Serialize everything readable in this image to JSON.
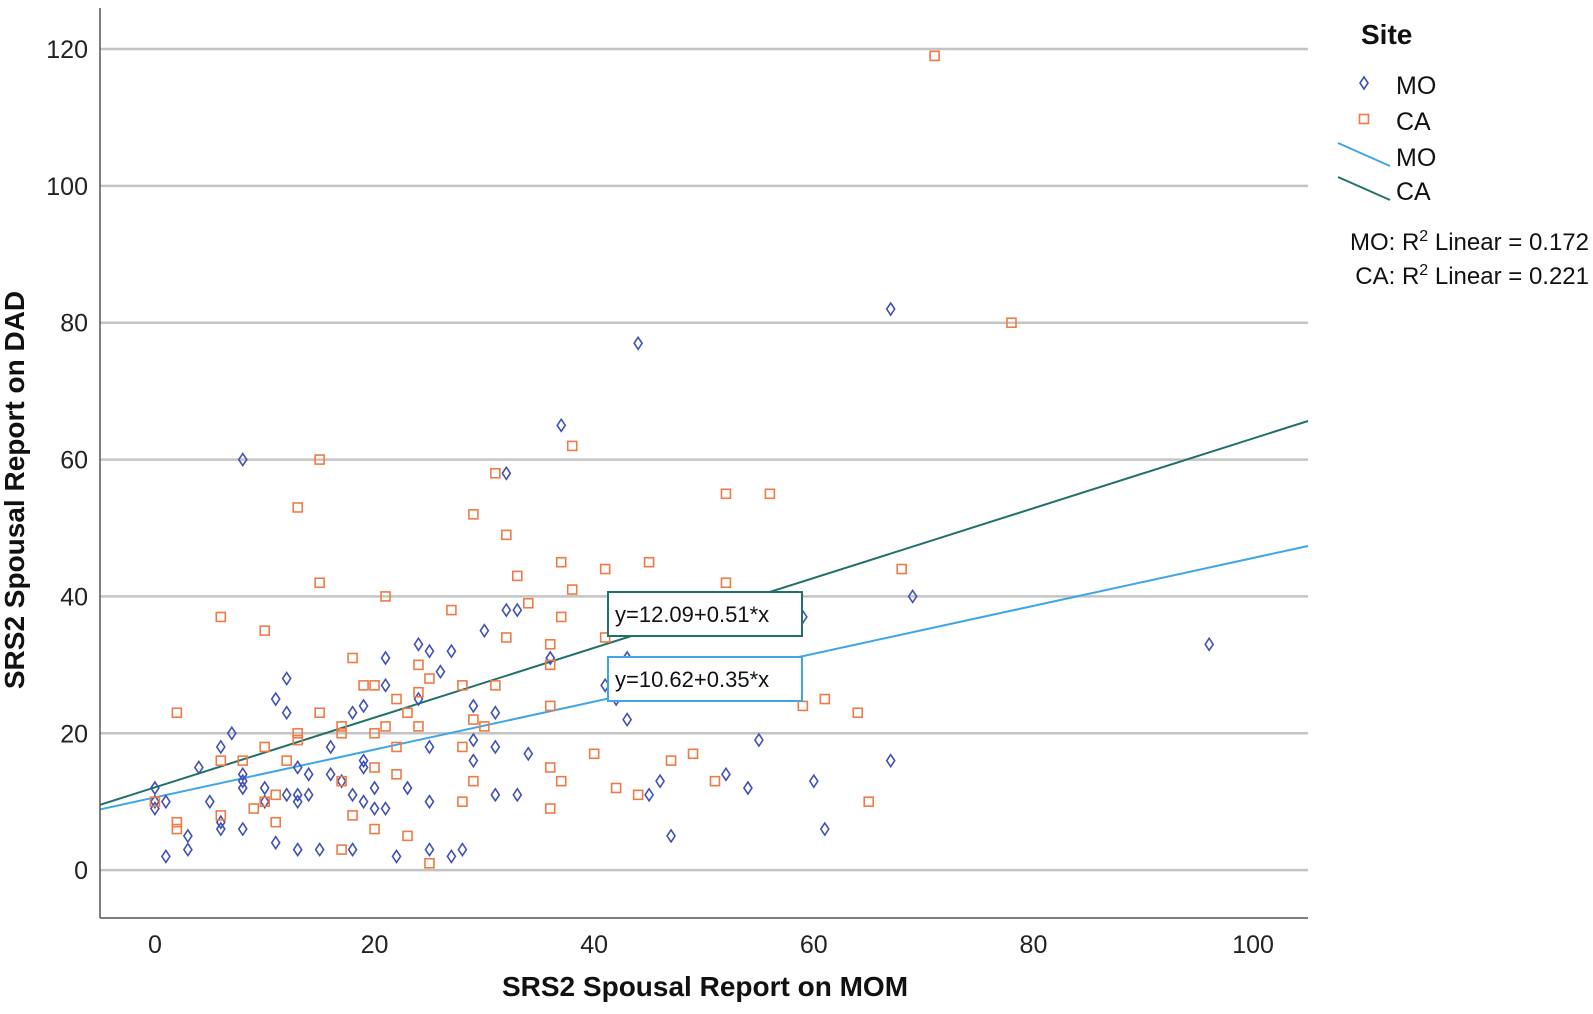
{
  "chart_data": {
    "type": "scatter",
    "xlabel": "SRS2 Spousal Report on MOM",
    "ylabel": "SRS2 Spousal Report on DAD",
    "xlim": [
      -5,
      105
    ],
    "ylim": [
      -7,
      126
    ],
    "x_ticks": [
      0,
      20,
      40,
      60,
      80,
      100
    ],
    "y_ticks": [
      0,
      20,
      40,
      60,
      80,
      100,
      120
    ],
    "grid": "horizontal",
    "legend": {
      "title": "Site",
      "placement": "right",
      "entries": [
        {
          "label": "MO",
          "kind": "marker",
          "series": "MO"
        },
        {
          "label": "CA",
          "kind": "marker",
          "series": "CA"
        },
        {
          "label": "MO",
          "kind": "line",
          "series": "MO"
        },
        {
          "label": "CA",
          "kind": "line",
          "series": "CA"
        }
      ]
    },
    "r2_labels": [
      "MO: R",
      "CA: R"
    ],
    "r2_suffix": " Linear = ",
    "r2_superscript": "2",
    "series": [
      {
        "name": "MO",
        "marker": "diamond",
        "color": "#3f51b5",
        "line_color": "#3ea6e8",
        "intercept": 10.62,
        "slope": 0.35,
        "r2": "0.172",
        "equation": "y=10.62+0.35*x",
        "points": [
          [
            0,
            12
          ],
          [
            0,
            10
          ],
          [
            0,
            9
          ],
          [
            1,
            10
          ],
          [
            1,
            2
          ],
          [
            3,
            5
          ],
          [
            3,
            3
          ],
          [
            4,
            15
          ],
          [
            5,
            10
          ],
          [
            6,
            18
          ],
          [
            6,
            7
          ],
          [
            6,
            6
          ],
          [
            7,
            20
          ],
          [
            8,
            60
          ],
          [
            8,
            14
          ],
          [
            8,
            13
          ],
          [
            8,
            12
          ],
          [
            8,
            6
          ],
          [
            10,
            12
          ],
          [
            10,
            10
          ],
          [
            11,
            25
          ],
          [
            11,
            4
          ],
          [
            12,
            28
          ],
          [
            12,
            23
          ],
          [
            12,
            11
          ],
          [
            13,
            15
          ],
          [
            13,
            11
          ],
          [
            13,
            10
          ],
          [
            13,
            3
          ],
          [
            14,
            14
          ],
          [
            14,
            11
          ],
          [
            15,
            3
          ],
          [
            16,
            18
          ],
          [
            16,
            14
          ],
          [
            17,
            13
          ],
          [
            18,
            23
          ],
          [
            18,
            11
          ],
          [
            18,
            3
          ],
          [
            19,
            24
          ],
          [
            19,
            16
          ],
          [
            19,
            15
          ],
          [
            19,
            10
          ],
          [
            20,
            12
          ],
          [
            20,
            9
          ],
          [
            21,
            31
          ],
          [
            21,
            27
          ],
          [
            21,
            9
          ],
          [
            22,
            2
          ],
          [
            23,
            12
          ],
          [
            24,
            33
          ],
          [
            24,
            25
          ],
          [
            25,
            32
          ],
          [
            25,
            18
          ],
          [
            25,
            10
          ],
          [
            25,
            3
          ],
          [
            26,
            29
          ],
          [
            27,
            32
          ],
          [
            27,
            2
          ],
          [
            28,
            3
          ],
          [
            29,
            24
          ],
          [
            29,
            19
          ],
          [
            29,
            16
          ],
          [
            30,
            35
          ],
          [
            31,
            23
          ],
          [
            31,
            18
          ],
          [
            31,
            11
          ],
          [
            32,
            58
          ],
          [
            32,
            38
          ],
          [
            33,
            38
          ],
          [
            33,
            11
          ],
          [
            34,
            17
          ],
          [
            36,
            31
          ],
          [
            37,
            65
          ],
          [
            41,
            27
          ],
          [
            42,
            25
          ],
          [
            43,
            31
          ],
          [
            43,
            22
          ],
          [
            44,
            77
          ],
          [
            45,
            11
          ],
          [
            46,
            13
          ],
          [
            47,
            5
          ],
          [
            52,
            14
          ],
          [
            54,
            12
          ],
          [
            55,
            19
          ],
          [
            59,
            37
          ],
          [
            60,
            13
          ],
          [
            61,
            6
          ],
          [
            67,
            82
          ],
          [
            67,
            16
          ],
          [
            69,
            40
          ],
          [
            96,
            33
          ]
        ]
      },
      {
        "name": "CA",
        "marker": "square",
        "color": "#f07a45",
        "line_color": "#21706b",
        "intercept": 12.09,
        "slope": 0.51,
        "r2": "0.221",
        "equation": "y=12.09+0.51*x",
        "points": [
          [
            0,
            10
          ],
          [
            2,
            23
          ],
          [
            2,
            7
          ],
          [
            2,
            6
          ],
          [
            6,
            37
          ],
          [
            6,
            16
          ],
          [
            6,
            8
          ],
          [
            8,
            16
          ],
          [
            9,
            9
          ],
          [
            10,
            35
          ],
          [
            10,
            18
          ],
          [
            10,
            10
          ],
          [
            11,
            11
          ],
          [
            11,
            7
          ],
          [
            12,
            16
          ],
          [
            13,
            53
          ],
          [
            13,
            20
          ],
          [
            13,
            19
          ],
          [
            15,
            60
          ],
          [
            15,
            42
          ],
          [
            15,
            23
          ],
          [
            17,
            20
          ],
          [
            17,
            21
          ],
          [
            17,
            13
          ],
          [
            17,
            3
          ],
          [
            18,
            31
          ],
          [
            18,
            8
          ],
          [
            19,
            27
          ],
          [
            20,
            27
          ],
          [
            20,
            20
          ],
          [
            20,
            15
          ],
          [
            20,
            6
          ],
          [
            21,
            40
          ],
          [
            21,
            21
          ],
          [
            22,
            25
          ],
          [
            22,
            18
          ],
          [
            22,
            14
          ],
          [
            23,
            23
          ],
          [
            23,
            5
          ],
          [
            24,
            30
          ],
          [
            24,
            26
          ],
          [
            24,
            21
          ],
          [
            25,
            28
          ],
          [
            25,
            1
          ],
          [
            27,
            38
          ],
          [
            28,
            27
          ],
          [
            28,
            18
          ],
          [
            28,
            10
          ],
          [
            29,
            52
          ],
          [
            29,
            22
          ],
          [
            29,
            13
          ],
          [
            30,
            21
          ],
          [
            31,
            58
          ],
          [
            31,
            27
          ],
          [
            32,
            49
          ],
          [
            32,
            34
          ],
          [
            33,
            43
          ],
          [
            34,
            39
          ],
          [
            36,
            33
          ],
          [
            36,
            30
          ],
          [
            36,
            24
          ],
          [
            36,
            15
          ],
          [
            36,
            9
          ],
          [
            37,
            45
          ],
          [
            37,
            37
          ],
          [
            37,
            13
          ],
          [
            38,
            62
          ],
          [
            38,
            41
          ],
          [
            40,
            17
          ],
          [
            41,
            44
          ],
          [
            41,
            34
          ],
          [
            42,
            12
          ],
          [
            44,
            11
          ],
          [
            45,
            45
          ],
          [
            47,
            16
          ],
          [
            49,
            17
          ],
          [
            51,
            13
          ],
          [
            52,
            55
          ],
          [
            52,
            42
          ],
          [
            56,
            55
          ],
          [
            59,
            24
          ],
          [
            61,
            25
          ],
          [
            64,
            23
          ],
          [
            65,
            10
          ],
          [
            68,
            44
          ],
          [
            71,
            119
          ],
          [
            78,
            80
          ]
        ]
      }
    ]
  }
}
